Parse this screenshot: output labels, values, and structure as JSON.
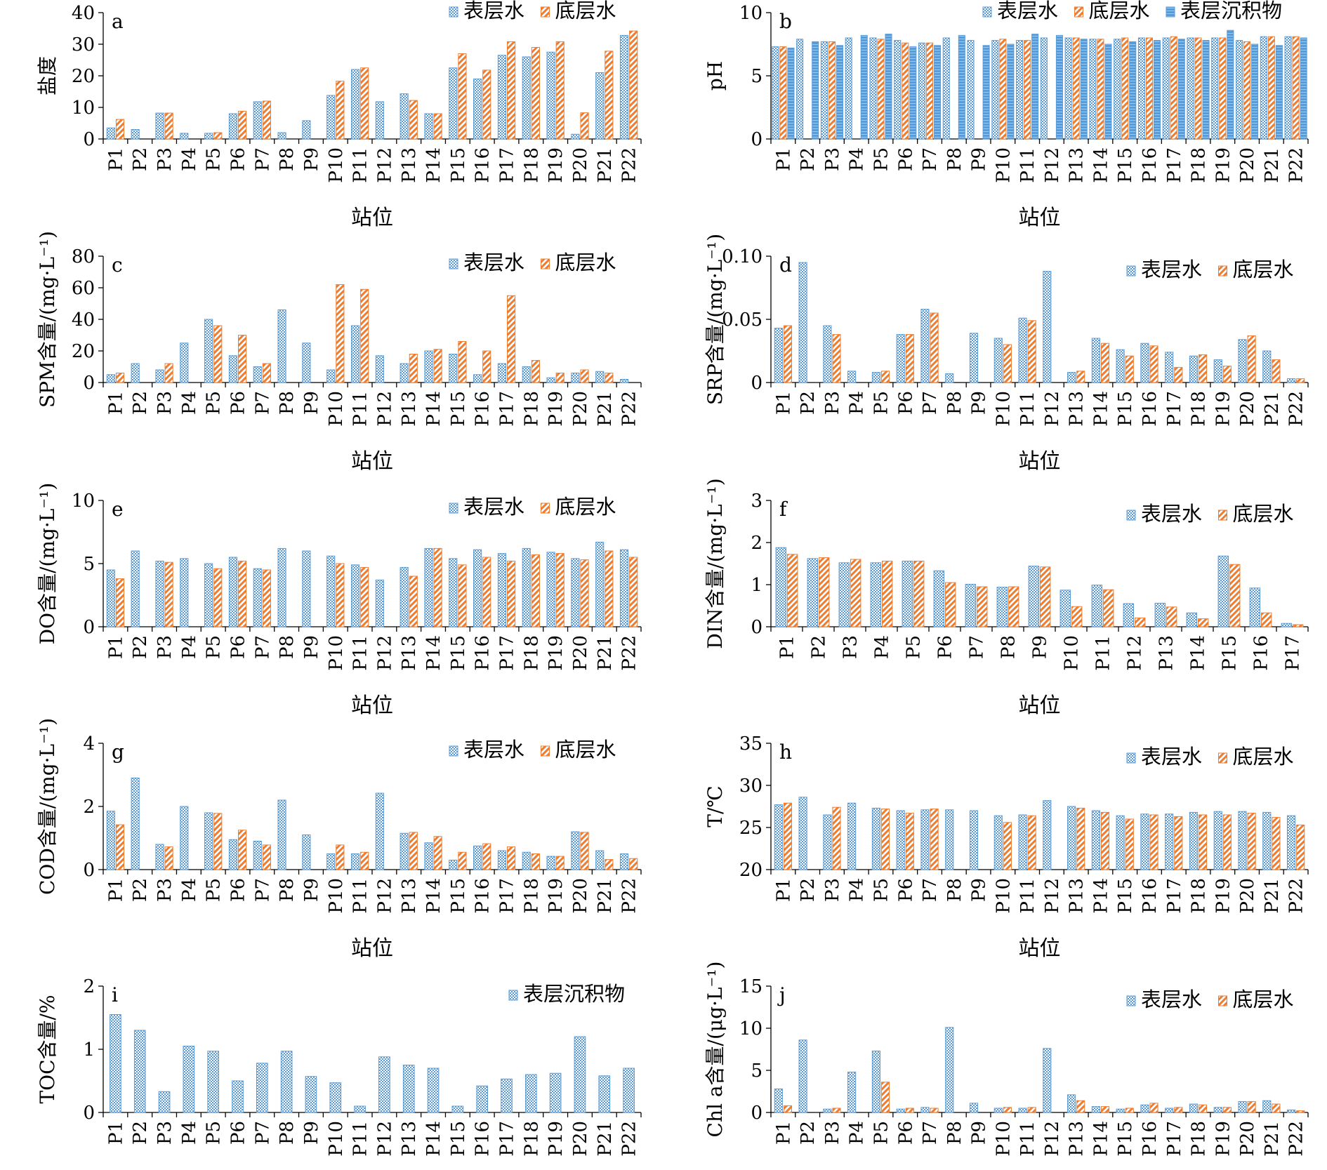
{
  "colors": {
    "surface": "#5b9bd5",
    "bottom": "#ed7d31",
    "sediment": "#5b9bd5"
  },
  "chart_data": [
    {
      "id": "a",
      "type": "bar",
      "panel_label": "a",
      "categories": [
        "P1",
        "P2",
        "P3",
        "P4",
        "P5",
        "P6",
        "P7",
        "P8",
        "P9",
        "P10",
        "P11",
        "P12",
        "P13",
        "P14",
        "P15",
        "P16",
        "P17",
        "P18",
        "P19",
        "P20",
        "P21",
        "P22"
      ],
      "series": [
        {
          "name": "表层水",
          "values": [
            3.5,
            3,
            8.2,
            1.8,
            1.8,
            8,
            11.8,
            2,
            5.8,
            13.8,
            22,
            11.8,
            14.3,
            8,
            22.5,
            19,
            26.5,
            26,
            27.5,
            1.5,
            21,
            32.8
          ]
        },
        {
          "name": "底层水",
          "values": [
            6.2,
            null,
            8.2,
            null,
            2,
            8.8,
            12,
            null,
            null,
            18.3,
            22.5,
            null,
            12.2,
            8,
            27,
            21.8,
            30.8,
            29,
            30.8,
            8.3,
            27.8,
            34.2
          ]
        }
      ],
      "ylabel": "盐度",
      "xlabel": "站位",
      "ylim": [
        0,
        40
      ],
      "yticks": [
        "0",
        "10",
        "20",
        "30",
        "40"
      ]
    },
    {
      "id": "b",
      "type": "bar",
      "panel_label": "b",
      "categories": [
        "P1",
        "P2",
        "P3",
        "P4",
        "P5",
        "P6",
        "P7",
        "P8",
        "P9",
        "P10",
        "P11",
        "P12",
        "P13",
        "P14",
        "P15",
        "P16",
        "P17",
        "P18",
        "P19",
        "P20",
        "P21",
        "P22"
      ],
      "series": [
        {
          "name": "表层水",
          "values": [
            7.3,
            7.9,
            7.7,
            8,
            8,
            7.8,
            7.6,
            8,
            7.8,
            7.8,
            7.8,
            8,
            8,
            7.9,
            7.9,
            8,
            8,
            8,
            8,
            7.8,
            8.1,
            8.1
          ]
        },
        {
          "name": "底层水",
          "values": [
            7.3,
            null,
            7.7,
            null,
            7.9,
            7.6,
            7.6,
            null,
            null,
            7.9,
            7.8,
            null,
            8,
            7.9,
            8,
            8,
            8.1,
            8,
            8,
            7.7,
            8.1,
            8.1
          ]
        },
        {
          "name": "表层沉积物",
          "values": [
            7.2,
            7.7,
            7.4,
            8.2,
            8.3,
            7.3,
            7.4,
            8.2,
            7.4,
            7.5,
            8.3,
            8.2,
            7.9,
            7.5,
            7.7,
            7.8,
            7.9,
            7.8,
            8.6,
            7.5,
            7.4,
            8
          ]
        }
      ],
      "ylabel": "pH",
      "xlabel": "站位",
      "ylim": [
        0,
        10
      ],
      "yticks": [
        "0",
        "5",
        "10"
      ]
    },
    {
      "id": "c",
      "type": "bar",
      "panel_label": "c",
      "categories": [
        "P1",
        "P2",
        "P3",
        "P4",
        "P5",
        "P6",
        "P7",
        "P8",
        "P9",
        "P10",
        "P11",
        "P12",
        "P13",
        "P14",
        "P15",
        "P16",
        "P17",
        "P18",
        "P19",
        "P20",
        "P21",
        "P22"
      ],
      "series": [
        {
          "name": "表层水",
          "values": [
            5,
            12,
            8,
            25,
            40,
            17,
            10,
            46,
            25,
            8,
            36,
            17,
            12,
            20,
            18,
            5,
            12,
            10,
            3,
            6,
            7,
            2
          ]
        },
        {
          "name": "底层水",
          "values": [
            6,
            null,
            12,
            null,
            36,
            30,
            12,
            null,
            null,
            62,
            59,
            null,
            18,
            21,
            26,
            20,
            55,
            14,
            6,
            8,
            6,
            null
          ]
        }
      ],
      "ylabel": "SPM含量/(mg·L⁻¹)",
      "xlabel": "站位",
      "ylim": [
        0,
        80
      ],
      "yticks": [
        "0",
        "20",
        "40",
        "60",
        "80"
      ]
    },
    {
      "id": "d",
      "type": "bar",
      "panel_label": "d",
      "categories": [
        "P1",
        "P2",
        "P3",
        "P4",
        "P5",
        "P6",
        "P7",
        "P8",
        "P9",
        "P10",
        "P11",
        "P12",
        "P13",
        "P14",
        "P15",
        "P16",
        "P17",
        "P18",
        "P19",
        "P20",
        "P21",
        "P22"
      ],
      "series": [
        {
          "name": "表层水",
          "values": [
            0.043,
            0.095,
            0.045,
            0.009,
            0.008,
            0.038,
            0.058,
            0.007,
            0.039,
            0.035,
            0.051,
            0.088,
            0.008,
            0.035,
            0.026,
            0.031,
            0.024,
            0.021,
            0.018,
            0.034,
            0.025,
            0.003
          ]
        },
        {
          "name": "底层水",
          "values": [
            0.045,
            null,
            0.038,
            null,
            0.009,
            0.038,
            0.055,
            null,
            null,
            0.03,
            0.049,
            null,
            0.009,
            0.031,
            0.021,
            0.029,
            0.012,
            0.022,
            0.013,
            0.037,
            0.018,
            0.003
          ]
        }
      ],
      "ylabel": "SRP含量/(mg·L⁻¹)",
      "xlabel": "站位",
      "ylim": [
        0,
        0.1
      ],
      "yticks": [
        "0",
        "0.05",
        "0.10"
      ]
    },
    {
      "id": "e",
      "type": "bar",
      "panel_label": "e",
      "categories": [
        "P1",
        "P2",
        "P3",
        "P4",
        "P5",
        "P6",
        "P7",
        "P8",
        "P9",
        "P10",
        "P11",
        "P12",
        "P13",
        "P14",
        "P15",
        "P16",
        "P17",
        "P18",
        "P19",
        "P20",
        "P21",
        "P22"
      ],
      "series": [
        {
          "name": "表层水",
          "values": [
            4.5,
            6,
            5.2,
            5.4,
            5,
            5.5,
            4.6,
            6.2,
            6,
            5.6,
            4.9,
            3.7,
            4.7,
            6.2,
            5.4,
            6.1,
            5.8,
            6.2,
            5.9,
            5.4,
            6.7,
            6.1
          ]
        },
        {
          "name": "底层水",
          "values": [
            3.8,
            null,
            5.1,
            null,
            4.6,
            5.2,
            4.5,
            null,
            null,
            5,
            4.7,
            null,
            4,
            6.2,
            4.9,
            5.5,
            5.2,
            5.7,
            5.8,
            5.3,
            6,
            5.5
          ]
        }
      ],
      "ylabel": "DO含量/(mg·L⁻¹)",
      "xlabel": "站位",
      "ylim": [
        0,
        10
      ],
      "yticks": [
        "0",
        "5",
        "10"
      ]
    },
    {
      "id": "f",
      "type": "bar",
      "panel_label": "f",
      "categories": [
        "P1",
        "P2",
        "P3",
        "P4",
        "P5",
        "P6",
        "P7",
        "P8",
        "P9",
        "P10",
        "P11",
        "P12",
        "P13",
        "P14",
        "P15",
        "P16",
        "P17"
      ],
      "series": [
        {
          "name": "表层水",
          "values": [
            1.88,
            1.62,
            1.52,
            1.52,
            1.56,
            1.33,
            1.01,
            0.94,
            1.44,
            0.87,
            0.99,
            0.55,
            0.56,
            0.33,
            1.68,
            0.92,
            0.08
          ]
        },
        {
          "name": "底层水",
          "values": [
            1.72,
            1.64,
            1.6,
            1.56,
            1.56,
            1.05,
            0.95,
            0.95,
            1.42,
            0.48,
            0.88,
            0.21,
            0.47,
            0.19,
            1.48,
            0.33,
            0.05
          ]
        }
      ],
      "ylabel": "DIN含量/(mg·L⁻¹)",
      "xlabel": "站位",
      "ylim": [
        0,
        3
      ],
      "yticks": [
        "0",
        "1",
        "2",
        "3"
      ]
    },
    {
      "id": "g",
      "type": "bar",
      "panel_label": "g",
      "categories": [
        "P1",
        "P2",
        "P3",
        "P4",
        "P5",
        "P6",
        "P7",
        "P8",
        "P9",
        "P10",
        "P11",
        "P12",
        "P13",
        "P14",
        "P15",
        "P16",
        "P17",
        "P18",
        "P19",
        "P20",
        "P21",
        "P22"
      ],
      "series": [
        {
          "name": "表层水",
          "values": [
            1.85,
            2.9,
            0.8,
            2,
            1.8,
            0.95,
            0.9,
            2.2,
            1.1,
            0.5,
            0.5,
            2.42,
            1.15,
            0.85,
            0.3,
            0.75,
            0.6,
            0.55,
            0.42,
            1.2,
            0.6,
            0.5
          ]
        },
        {
          "name": "底层水",
          "values": [
            1.42,
            null,
            0.72,
            null,
            1.78,
            1.25,
            0.78,
            null,
            null,
            0.78,
            0.55,
            null,
            1.18,
            1.05,
            0.55,
            0.82,
            0.72,
            0.5,
            0.42,
            1.18,
            0.32,
            0.35
          ]
        }
      ],
      "ylabel": "COD含量/(mg·L⁻¹)",
      "xlabel": "站位",
      "ylim": [
        0,
        4
      ],
      "yticks": [
        "0",
        "2",
        "4"
      ]
    },
    {
      "id": "h",
      "type": "bar",
      "panel_label": "h",
      "categories": [
        "P1",
        "P2",
        "P3",
        "P4",
        "P5",
        "P6",
        "P7",
        "P8",
        "P9",
        "P10",
        "P11",
        "P12",
        "P13",
        "P14",
        "P15",
        "P16",
        "P17",
        "P18",
        "P19",
        "P20",
        "P21",
        "P22"
      ],
      "series": [
        {
          "name": "表层水",
          "values": [
            27.7,
            28.6,
            26.5,
            27.9,
            27.3,
            27,
            27.1,
            27.1,
            27,
            26.4,
            26.5,
            28.2,
            27.5,
            27,
            26.4,
            26.6,
            26.6,
            26.8,
            26.9,
            26.9,
            26.8,
            26.4
          ]
        },
        {
          "name": "底层水",
          "values": [
            27.9,
            null,
            27.4,
            null,
            27.2,
            26.7,
            27.2,
            null,
            null,
            25.6,
            26.4,
            null,
            27.3,
            26.8,
            26,
            26.5,
            26.3,
            26.5,
            26.5,
            26.7,
            26.2,
            25.3
          ]
        }
      ],
      "ylabel": "T/℃",
      "xlabel": "站位",
      "ylim": [
        20,
        35
      ],
      "yticks": [
        "20",
        "25",
        "30",
        "35"
      ]
    },
    {
      "id": "i",
      "type": "bar",
      "panel_label": "i",
      "categories": [
        "P1",
        "P2",
        "P3",
        "P4",
        "P5",
        "P6",
        "P7",
        "P8",
        "P9",
        "P10",
        "P11",
        "P12",
        "P13",
        "P14",
        "P15",
        "P16",
        "P17",
        "P18",
        "P19",
        "P20",
        "P21",
        "P22"
      ],
      "series": [
        {
          "name": "表层沉积物",
          "values": [
            1.55,
            1.3,
            0.33,
            1.05,
            0.97,
            0.5,
            0.78,
            0.97,
            0.57,
            0.47,
            0.1,
            0.88,
            0.75,
            0.7,
            0.1,
            0.42,
            0.53,
            0.6,
            0.62,
            1.2,
            0.58,
            0.7
          ]
        }
      ],
      "ylabel": "TOC含量/%",
      "xlabel": "站位",
      "ylim": [
        0,
        2
      ],
      "yticks": [
        "0",
        "1",
        "2"
      ]
    },
    {
      "id": "j",
      "type": "bar",
      "panel_label": "j",
      "categories": [
        "P1",
        "P2",
        "P3",
        "P4",
        "P5",
        "P6",
        "P7",
        "P8",
        "P9",
        "P10",
        "P11",
        "P12",
        "P13",
        "P14",
        "P15",
        "P16",
        "P17",
        "P18",
        "P19",
        "P20",
        "P21",
        "P22"
      ],
      "series": [
        {
          "name": "表层水",
          "values": [
            2.8,
            8.6,
            0.4,
            4.8,
            7.3,
            0.4,
            0.6,
            10.1,
            1.1,
            0.5,
            0.5,
            7.6,
            2.1,
            0.7,
            0.4,
            0.9,
            0.5,
            1,
            0.6,
            1.3,
            1.4,
            0.3
          ]
        },
        {
          "name": "底层水",
          "values": [
            0.8,
            null,
            0.5,
            null,
            3.6,
            0.5,
            0.5,
            null,
            null,
            0.6,
            0.6,
            null,
            1.4,
            0.7,
            0.5,
            1.1,
            0.6,
            0.9,
            0.6,
            1.3,
            1,
            0.2
          ]
        }
      ],
      "ylabel": "Chl a含量/(μg·L⁻¹)",
      "xlabel": "站位",
      "ylim": [
        0,
        15
      ],
      "yticks": [
        "0",
        "5",
        "10",
        "15"
      ]
    }
  ]
}
